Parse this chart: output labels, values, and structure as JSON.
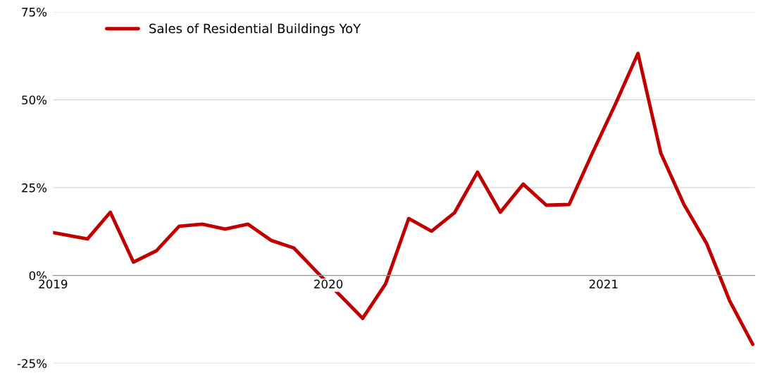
{
  "chart_data": {
    "type": "line",
    "x": [
      2019.0,
      2019.125,
      2019.208,
      2019.292,
      2019.375,
      2019.458,
      2019.542,
      2019.625,
      2019.708,
      2019.792,
      2019.875,
      2019.958,
      2020.042,
      2020.125,
      2020.208,
      2020.292,
      2020.375,
      2020.458,
      2020.542,
      2020.625,
      2020.708,
      2020.792,
      2020.875,
      2020.958,
      2021.042,
      2021.125,
      2021.208,
      2021.292,
      2021.375,
      2021.458,
      2021.542
    ],
    "series": [
      {
        "name": "Sales of Residential Buildings YoY",
        "color": "#c00000",
        "values": [
          12.2,
          10.4,
          18,
          3.8,
          7,
          14,
          14.6,
          13.2,
          14.6,
          10,
          7.8,
          1,
          -5.6,
          -12.2,
          -2.4,
          16.2,
          12.6,
          17.8,
          29.4,
          18,
          26,
          20,
          20.2,
          34.6,
          48.6,
          63.2,
          34.8,
          20.2,
          9,
          -7.2,
          -19.6
        ]
      }
    ],
    "xlim": [
      2019.0,
      2021.55
    ],
    "xticks": [
      {
        "value": 2019,
        "label": "2019"
      },
      {
        "value": 2020,
        "label": "2020"
      },
      {
        "value": 2021,
        "label": "2021"
      }
    ],
    "ylim": [
      -25,
      75
    ],
    "yticks": [
      {
        "value": -25,
        "label": "-25%"
      },
      {
        "value": 0,
        "label": "0%"
      },
      {
        "value": 25,
        "label": "25%"
      },
      {
        "value": 50,
        "label": "50%"
      },
      {
        "value": 75,
        "label": "75%"
      }
    ],
    "grid": "y",
    "legend": "top left",
    "marker": "none",
    "line_style": "solid"
  }
}
